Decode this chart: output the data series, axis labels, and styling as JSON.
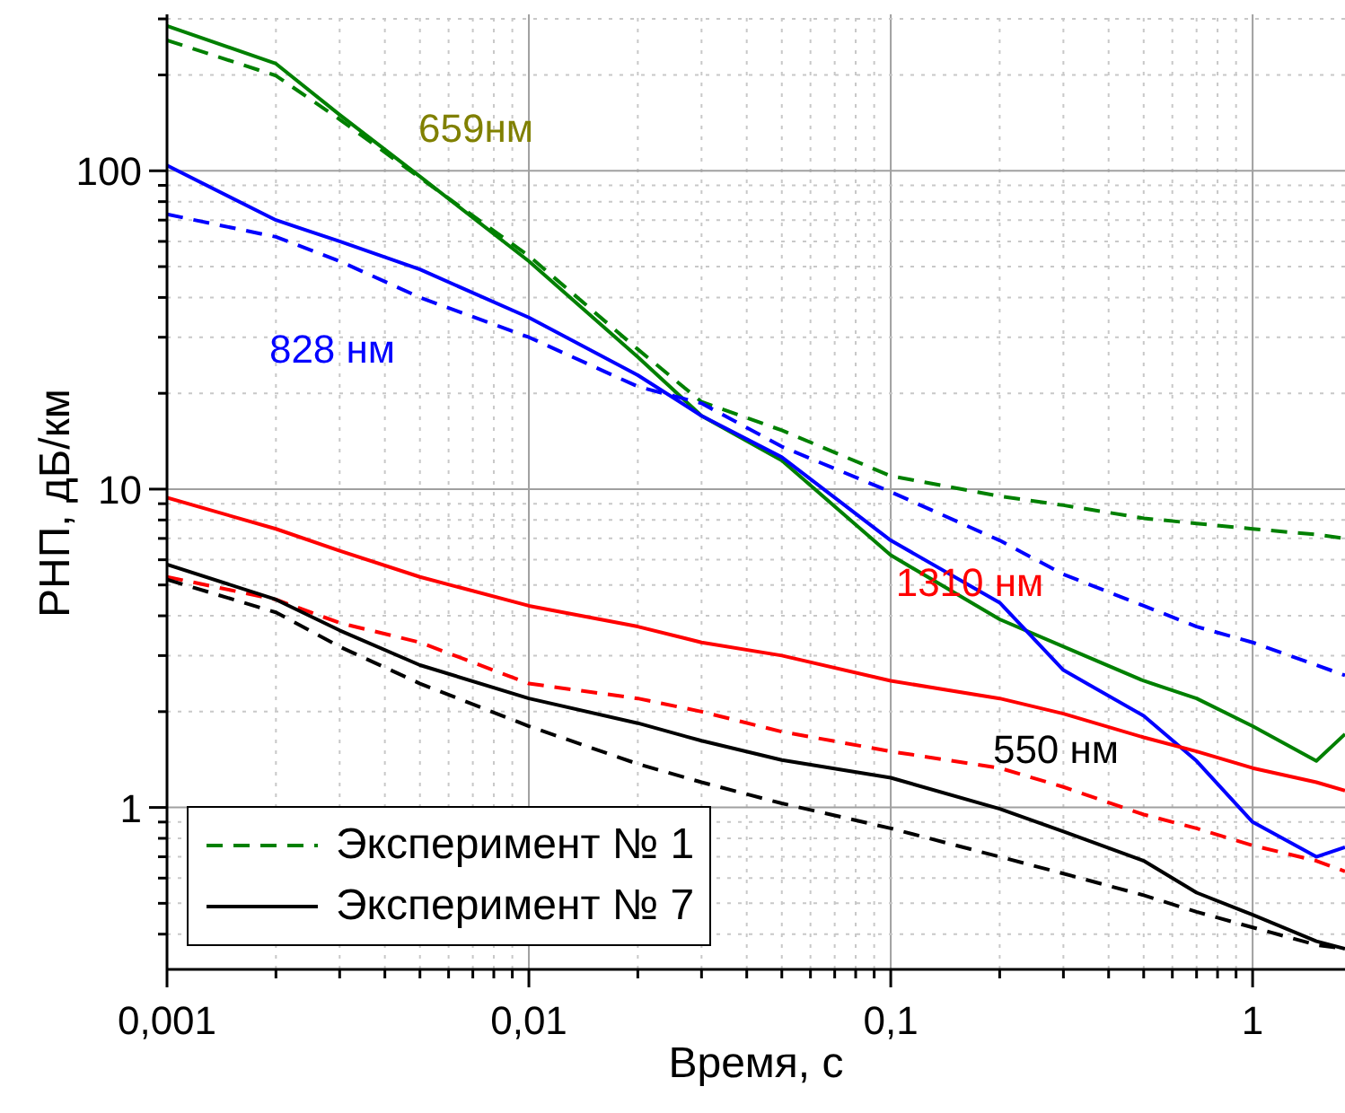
{
  "chart_data": {
    "type": "line",
    "xlabel": "Время, с",
    "ylabel": "РНП, дБ/км",
    "log": "xy",
    "grid": true,
    "legend": "bottom left",
    "line_style": "solid",
    "xlim": [
      0.001,
      1.8
    ],
    "ylim": [
      0.31,
      310
    ],
    "xticks": [
      {
        "value": 0.001,
        "label": "0,001"
      },
      {
        "value": 0.002,
        "label": null
      },
      {
        "value": 0.003,
        "label": null
      },
      {
        "value": 0.004,
        "label": null
      },
      {
        "value": 0.005,
        "label": null
      },
      {
        "value": 0.006,
        "label": null
      },
      {
        "value": 0.007,
        "label": null
      },
      {
        "value": 0.008,
        "label": null
      },
      {
        "value": 0.009,
        "label": null
      },
      {
        "value": 0.01,
        "label": "0,01"
      },
      {
        "value": 0.02,
        "label": null
      },
      {
        "value": 0.03,
        "label": null
      },
      {
        "value": 0.04,
        "label": null
      },
      {
        "value": 0.05,
        "label": null
      },
      {
        "value": 0.06,
        "label": null
      },
      {
        "value": 0.07,
        "label": null
      },
      {
        "value": 0.08,
        "label": null
      },
      {
        "value": 0.09,
        "label": null
      },
      {
        "value": 0.1,
        "label": "0,1"
      },
      {
        "value": 0.2,
        "label": null
      },
      {
        "value": 0.3,
        "label": null
      },
      {
        "value": 0.4,
        "label": null
      },
      {
        "value": 0.5,
        "label": null
      },
      {
        "value": 0.6,
        "label": null
      },
      {
        "value": 0.7,
        "label": null
      },
      {
        "value": 0.8,
        "label": null
      },
      {
        "value": 0.9,
        "label": null
      },
      {
        "value": 1,
        "label": "1"
      }
    ],
    "yticks": [
      {
        "value": 0.4,
        "label": null
      },
      {
        "value": 0.5,
        "label": null
      },
      {
        "value": 0.6,
        "label": null
      },
      {
        "value": 0.7,
        "label": null
      },
      {
        "value": 0.8,
        "label": null
      },
      {
        "value": 0.9,
        "label": null
      },
      1,
      {
        "value": 2,
        "label": null
      },
      {
        "value": 3,
        "label": null
      },
      {
        "value": 4,
        "label": null
      },
      {
        "value": 5,
        "label": null
      },
      {
        "value": 6,
        "label": null
      },
      {
        "value": 7,
        "label": null
      },
      {
        "value": 8,
        "label": null
      },
      {
        "value": 9,
        "label": null
      },
      10,
      {
        "value": 20,
        "label": null
      },
      {
        "value": 30,
        "label": null
      },
      {
        "value": 40,
        "label": null
      },
      {
        "value": 50,
        "label": null
      },
      {
        "value": 60,
        "label": null
      },
      {
        "value": 70,
        "label": null
      },
      {
        "value": 80,
        "label": null
      },
      {
        "value": 90,
        "label": null
      },
      100,
      {
        "value": 200,
        "label": null
      },
      {
        "value": 300,
        "label": null
      }
    ],
    "x": [
      0.001,
      0.002,
      0.003,
      0.005,
      0.01,
      0.02,
      0.03,
      0.05,
      0.1,
      0.2,
      0.3,
      0.5,
      0.7,
      1,
      1.5,
      1.8
    ],
    "series": [
      {
        "color": "#008000",
        "values": [
          285,
          217,
          150,
          96,
          52,
          26,
          17,
          12.3,
          6.2,
          3.9,
          3.2,
          2.5,
          2.2,
          1.8,
          1.4,
          1.7
        ]
      },
      {
        "name": "Эксперимент № 1",
        "color": "#008000",
        "line_style": "dashed",
        "values": [
          257,
          199,
          145,
          95,
          54,
          27.5,
          18.8,
          15.3,
          11,
          9.5,
          8.9,
          8.1,
          7.8,
          7.5,
          7.2,
          7.0
        ]
      },
      {
        "color": "#0000ff",
        "values": [
          104,
          70,
          60,
          49,
          34.6,
          22.8,
          17,
          12.6,
          6.9,
          4.4,
          2.7,
          1.94,
          1.4,
          0.9,
          0.7,
          0.75
        ]
      },
      {
        "color": "#0000ff",
        "line_style": "dashed",
        "values": [
          73,
          62,
          52,
          40,
          30,
          21,
          18.6,
          13.6,
          9.8,
          6.9,
          5.4,
          4.3,
          3.7,
          3.3,
          2.8,
          2.6
        ]
      },
      {
        "color": "#ff0000",
        "values": [
          9.4,
          7.5,
          6.4,
          5.3,
          4.3,
          3.7,
          3.3,
          3.0,
          2.5,
          2.2,
          1.97,
          1.66,
          1.5,
          1.33,
          1.2,
          1.13
        ]
      },
      {
        "color": "#ff0000",
        "line_style": "dashed",
        "values": [
          5.3,
          4.5,
          3.8,
          3.3,
          2.45,
          2.2,
          2.0,
          1.73,
          1.5,
          1.33,
          1.16,
          0.95,
          0.86,
          0.76,
          0.68,
          0.63
        ]
      },
      {
        "name": "Эксперимент № 7",
        "color": "#000000",
        "values": [
          5.8,
          4.5,
          3.6,
          2.8,
          2.2,
          1.84,
          1.62,
          1.41,
          1.24,
          0.99,
          0.84,
          0.68,
          0.54,
          0.46,
          0.38,
          0.36
        ]
      },
      {
        "color": "#000000",
        "line_style": "dashed",
        "values": [
          5.2,
          4.1,
          3.2,
          2.45,
          1.8,
          1.37,
          1.2,
          1.03,
          0.86,
          0.7,
          0.62,
          0.53,
          0.47,
          0.42,
          0.37,
          0.36
        ]
      }
    ],
    "annotations": [
      "659нм",
      "828 нм",
      "1310 нм",
      "550 нм"
    ]
  }
}
